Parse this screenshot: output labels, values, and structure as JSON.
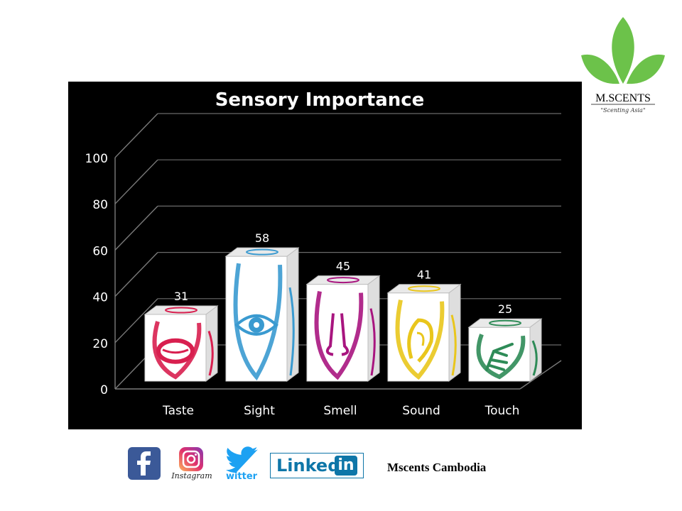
{
  "brand": {
    "name": "M.SCENTS",
    "tagline": "\"Scenting Asia\"",
    "leaf_color": "#6cc24a"
  },
  "footer": {
    "text": "Mscents Cambodia"
  },
  "social": {
    "facebook": {
      "icon": "facebook-icon",
      "color": "#3b5998"
    },
    "instagram": {
      "icon": "instagram-icon",
      "label": "Instagram"
    },
    "twitter": {
      "icon": "twitter-icon",
      "label": "witter",
      "color": "#1da1f2"
    },
    "linkedin": {
      "icon": "linkedin-icon",
      "label": "Linked",
      "badge": "in",
      "color": "#0e76a8"
    }
  },
  "chart_data": {
    "type": "bar",
    "title": "Sensory Importance",
    "categories": [
      "Taste",
      "Sight",
      "Smell",
      "Sound",
      "Touch"
    ],
    "values": [
      31,
      58,
      45,
      41,
      25
    ],
    "icons": [
      "mouth-icon",
      "eye-icon",
      "nose-icon",
      "ear-icon",
      "hand-icon"
    ],
    "colors": [
      "#d81f4f",
      "#3a9ad0",
      "#a8157f",
      "#e9c61c",
      "#2e8b57"
    ],
    "ylim": [
      0,
      100
    ],
    "yticks": [
      0,
      20,
      40,
      60,
      80,
      100
    ],
    "grid": true,
    "background": "#000000"
  }
}
